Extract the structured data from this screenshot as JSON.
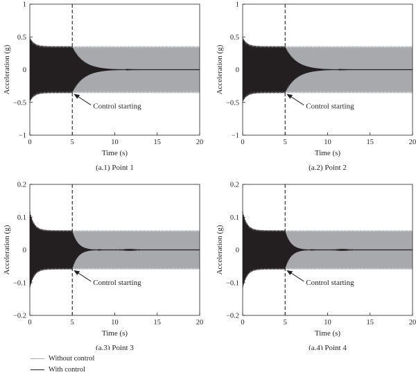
{
  "legend": {
    "items": [
      {
        "label": "Without control",
        "color": "#a7a9ac"
      },
      {
        "label": "With control",
        "color": "#231f20"
      }
    ]
  },
  "chart_data": [
    {
      "type": "line",
      "caption": "(a.1) Point 1",
      "xlabel": "Time (s)",
      "ylabel": "Acceleration (g)",
      "xlim": [
        0,
        20
      ],
      "ylim": [
        -1,
        1
      ],
      "xticks": [
        0,
        5,
        10,
        15,
        20
      ],
      "yticks": [
        -1,
        -0.5,
        0,
        0.5,
        1
      ],
      "ytick_labels": [
        "−1",
        "−0.5",
        "0",
        "0.5",
        "1"
      ],
      "control_start_time": 5,
      "annotation": {
        "text": "Control starting",
        "x": 5,
        "y": -0.36
      },
      "series": [
        {
          "name": "Without control",
          "envelope": {
            "initial_peak": 0.5,
            "steady_amplitude": 0.36,
            "duration": [
              0,
              20
            ]
          }
        },
        {
          "name": "With control",
          "envelope": {
            "initial_peak": 0.5,
            "amplitude_at_start": 0.36,
            "decays_to": 0,
            "settled_by": 11
          }
        }
      ]
    },
    {
      "type": "line",
      "caption": "(a.2) Point 2",
      "xlabel": "Time (s)",
      "ylabel": "Acceleration (g)",
      "xlim": [
        0,
        20
      ],
      "ylim": [
        -1,
        1
      ],
      "xticks": [
        0,
        5,
        10,
        15,
        20
      ],
      "yticks": [
        -1,
        -0.5,
        0,
        0.5,
        1
      ],
      "ytick_labels": [
        "−1",
        "−0.5",
        "0",
        "0.5",
        "1"
      ],
      "control_start_time": 5,
      "annotation": {
        "text": "Control starting",
        "x": 5,
        "y": -0.36
      },
      "series": [
        {
          "name": "Without control",
          "envelope": {
            "initial_peak": 0.5,
            "steady_amplitude": 0.36,
            "duration": [
              0,
              20
            ]
          }
        },
        {
          "name": "With control",
          "envelope": {
            "initial_peak": 0.5,
            "amplitude_at_start": 0.36,
            "decays_to": 0,
            "settled_by": 11
          }
        }
      ]
    },
    {
      "type": "line",
      "caption": "(a.3) Point 3",
      "xlabel": "Time (s)",
      "ylabel": "Acceleration (g)",
      "xlim": [
        0,
        20
      ],
      "ylim": [
        -0.2,
        0.2
      ],
      "xticks": [
        0,
        5,
        10,
        15,
        20
      ],
      "yticks": [
        -0.2,
        -0.1,
        0,
        0.1,
        0.2
      ],
      "ytick_labels": [
        "−0.2",
        "−0.1",
        "0",
        "0.1",
        "0.2"
      ],
      "control_start_time": 5,
      "annotation": {
        "text": "Control starting",
        "x": 5,
        "y": -0.06
      },
      "series": [
        {
          "name": "Without control",
          "envelope": {
            "initial_peak": 0.12,
            "steady_amplitude": 0.06,
            "duration": [
              0,
              20
            ]
          }
        },
        {
          "name": "With control",
          "envelope": {
            "initial_peak": 0.12,
            "amplitude_at_start": 0.06,
            "decays_to": 0,
            "settled_by": 8,
            "residual_burst": [
              10.5,
              13
            ]
          }
        }
      ]
    },
    {
      "type": "line",
      "caption": "(a.4) Point 4",
      "xlabel": "Time (s)",
      "ylabel": "Acceleration (g)",
      "xlim": [
        0,
        20
      ],
      "ylim": [
        -0.2,
        0.2
      ],
      "xticks": [
        0,
        5,
        10,
        15,
        20
      ],
      "yticks": [
        -0.2,
        -0.1,
        0,
        0.1,
        0.2
      ],
      "ytick_labels": [
        "−0.2",
        "−0.1",
        "0",
        "0.1",
        "0.2"
      ],
      "control_start_time": 5,
      "annotation": {
        "text": "Control starting",
        "x": 5,
        "y": -0.06
      },
      "series": [
        {
          "name": "Without control",
          "envelope": {
            "initial_peak": 0.12,
            "steady_amplitude": 0.06,
            "duration": [
              0,
              20
            ]
          }
        },
        {
          "name": "With control",
          "envelope": {
            "initial_peak": 0.12,
            "amplitude_at_start": 0.06,
            "decays_to": 0,
            "settled_by": 8,
            "residual_burst": [
              10.5,
              13
            ]
          }
        }
      ]
    }
  ]
}
